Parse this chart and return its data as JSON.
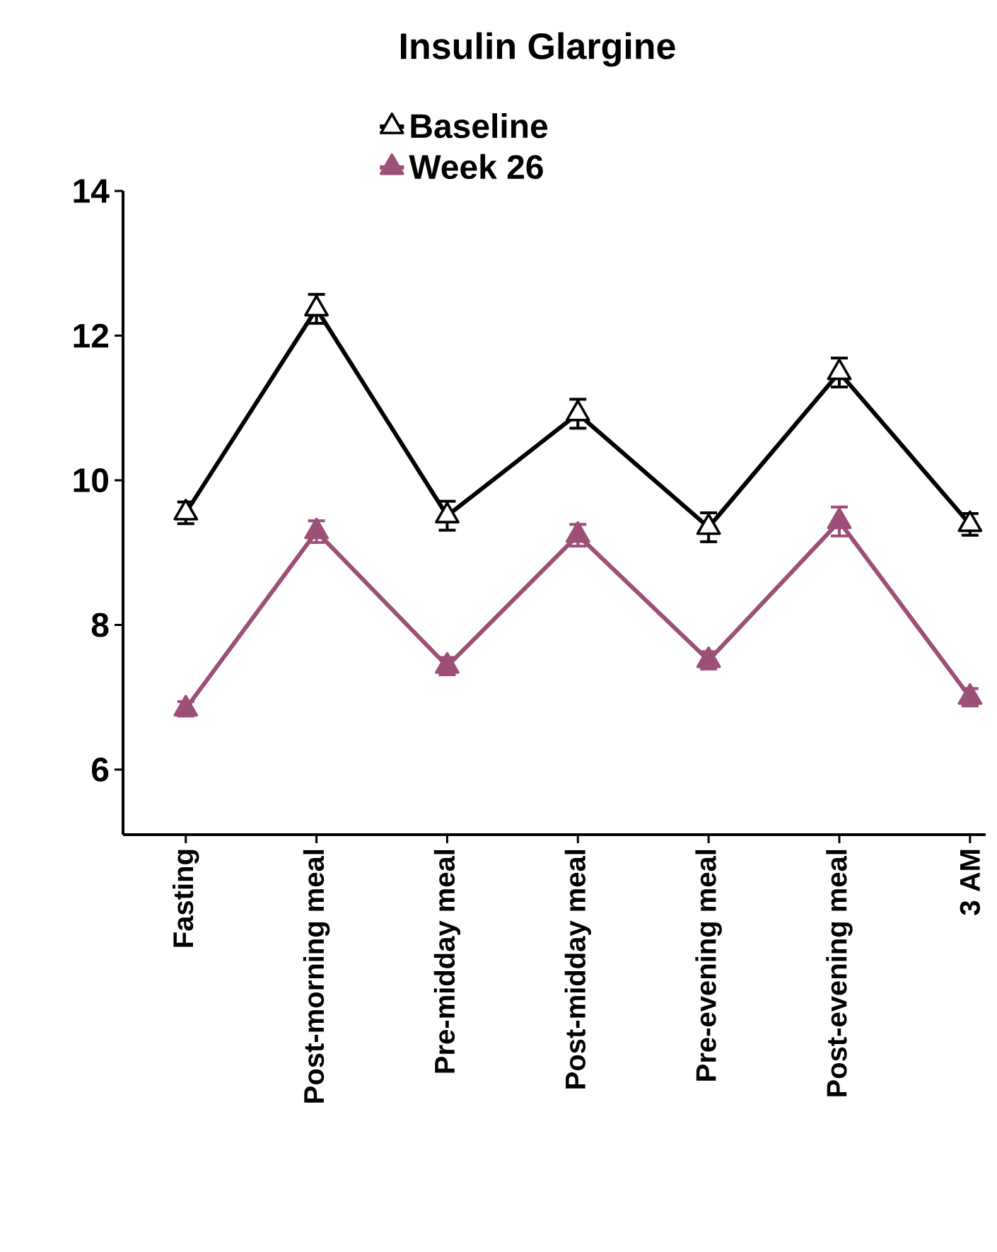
{
  "chart_data": {
    "type": "line",
    "title": "Insulin Glargine",
    "categories": [
      "Fasting",
      "Post-morning meal",
      "Pre-midday meal",
      "Post-midday meal",
      "Pre-evening meal",
      "Post-evening meal",
      "3 AM"
    ],
    "series": [
      {
        "name": "Baseline",
        "color": "#000000",
        "values": [
          9.55,
          12.37,
          9.51,
          10.92,
          9.35,
          11.49,
          9.39
        ],
        "errors": [
          0.15,
          0.2,
          0.2,
          0.2,
          0.2,
          0.2,
          0.15
        ]
      },
      {
        "name": "Week 26",
        "color": "#9c4f77",
        "values": [
          6.84,
          9.29,
          7.43,
          9.24,
          7.51,
          9.43,
          7.0
        ],
        "errors": [
          0.1,
          0.15,
          0.12,
          0.15,
          0.12,
          0.2,
          0.12
        ]
      }
    ],
    "ylim": [
      5.1,
      14
    ],
    "yticks": [
      6,
      8,
      10,
      12,
      14
    ],
    "marker": "triangle",
    "line_style": "solid",
    "grid": false,
    "legend": "top"
  }
}
